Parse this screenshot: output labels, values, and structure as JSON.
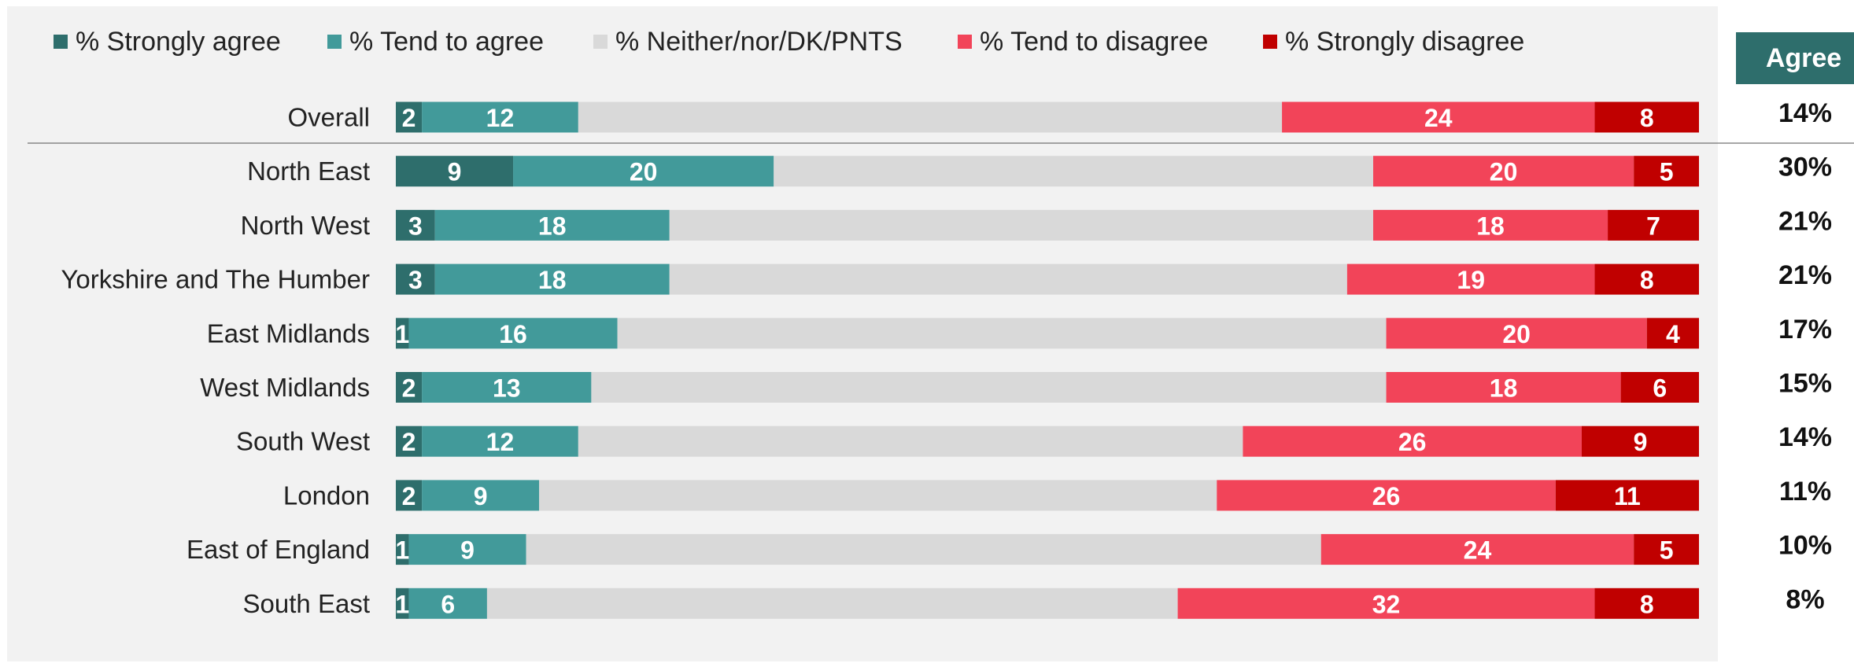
{
  "chart_data": {
    "type": "stacked-bar-horizontal",
    "categories": [
      "Overall",
      "North East",
      "North West",
      "Yorkshire and The Humber",
      "East Midlands",
      "West Midlands",
      "South West",
      "London",
      "East of England",
      "South East"
    ],
    "series": [
      {
        "name": "% Strongly agree",
        "color": "#2e6e6c",
        "show_labels": true,
        "values": [
          2,
          9,
          3,
          3,
          1,
          2,
          2,
          2,
          1,
          1
        ]
      },
      {
        "name": "% Tend to agree",
        "color": "#429a9a",
        "show_labels": true,
        "values": [
          12,
          20,
          18,
          18,
          16,
          13,
          12,
          9,
          9,
          6
        ]
      },
      {
        "name": "% Neither/nor/DK/PNTS",
        "color": "#d9d9d9",
        "show_labels": false,
        "values": [
          54,
          46,
          54,
          52,
          59,
          61,
          51,
          52,
          61,
          53
        ]
      },
      {
        "name": "% Tend to disagree",
        "color": "#f24459",
        "show_labels": true,
        "values": [
          24,
          20,
          18,
          19,
          20,
          18,
          26,
          26,
          24,
          32
        ]
      },
      {
        "name": "% Strongly disagree",
        "color": "#c00000",
        "show_labels": true,
        "values": [
          8,
          5,
          7,
          8,
          4,
          6,
          9,
          11,
          5,
          8
        ]
      }
    ],
    "xlim": [
      0,
      100
    ],
    "agree": {
      "header": "Agree",
      "labels": [
        "14%",
        "30%",
        "21%",
        "21%",
        "17%",
        "15%",
        "14%",
        "11%",
        "10%",
        "8%"
      ]
    }
  }
}
